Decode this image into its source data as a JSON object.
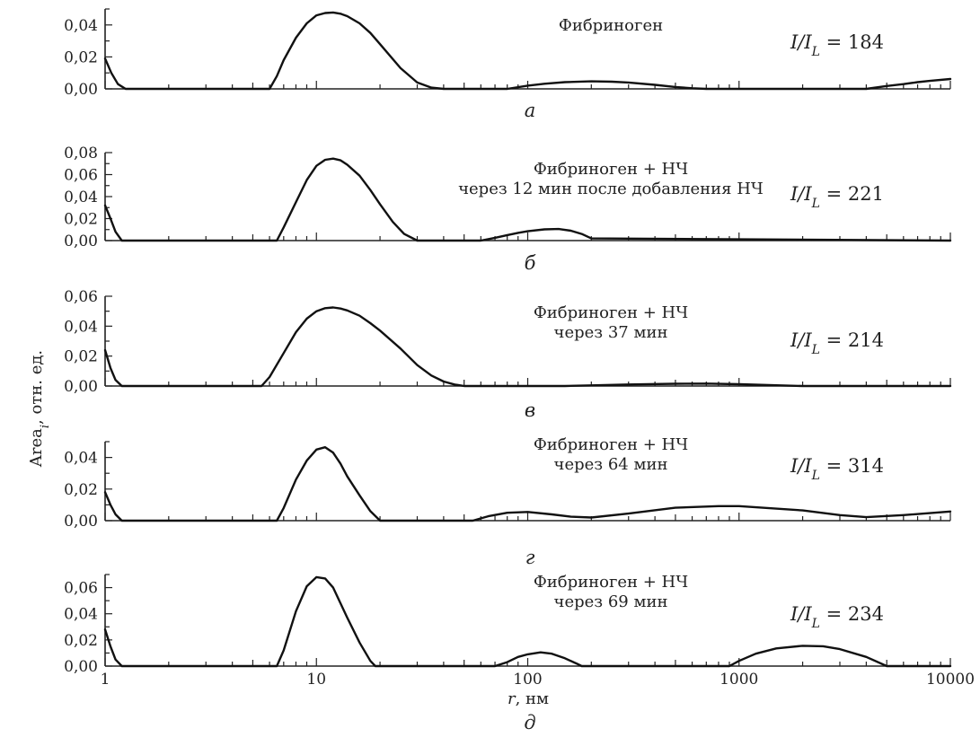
{
  "figure": {
    "ylabel": "Area",
    "ylabel_sub": "i",
    "ylabel_rest": ", отн. ед.",
    "xlabel_var": "r",
    "xlabel_unit": ", нм"
  },
  "chart_data": [
    {
      "type": "line",
      "panel": "а",
      "title_lines": [
        "Фибриноген"
      ],
      "ratio": {
        "text": "I/I",
        "sub": "L",
        "value": " = 184"
      },
      "xscale": "log",
      "xlim": [
        1,
        10000
      ],
      "ylim": [
        0,
        0.05
      ],
      "yticks": [
        "0,00",
        "0,02",
        "0,04"
      ],
      "xticks": [],
      "grid": false,
      "series": [
        {
          "x": [
            1,
            1.07,
            1.15,
            1.25,
            6,
            6.5,
            7,
            8,
            9,
            10,
            11,
            12,
            13,
            14,
            16,
            18,
            20,
            25,
            30,
            35,
            40,
            80,
            100,
            120,
            150,
            200,
            250,
            300,
            400,
            500,
            600,
            700,
            4000,
            5000,
            6000,
            7000,
            8000,
            10000
          ],
          "y": [
            0.019,
            0.01,
            0.003,
            0,
            0,
            0.008,
            0.018,
            0.032,
            0.041,
            0.046,
            0.0475,
            0.0478,
            0.047,
            0.0455,
            0.041,
            0.035,
            0.028,
            0.013,
            0.004,
            0.0008,
            0,
            0,
            0.002,
            0.0032,
            0.0042,
            0.0047,
            0.0045,
            0.004,
            0.0025,
            0.0012,
            0.0004,
            0,
            0,
            0.0018,
            0.003,
            0.0042,
            0.005,
            0.0062
          ]
        }
      ]
    },
    {
      "type": "line",
      "panel": "б",
      "title_lines": [
        "Фибриноген + НЧ",
        "через 12 мин после добавления НЧ"
      ],
      "ratio": {
        "text": "I/I",
        "sub": "L",
        "value": " = 221"
      },
      "xscale": "log",
      "xlim": [
        1,
        10000
      ],
      "ylim": [
        0,
        0.08
      ],
      "yticks": [
        "0,00",
        "0,02",
        "0,04",
        "0,06",
        "0,08"
      ],
      "xticks": [],
      "grid": false,
      "series": [
        {
          "x": [
            1,
            1.06,
            1.12,
            1.2,
            6.5,
            7,
            8,
            9,
            10,
            11,
            12,
            13,
            14,
            16,
            18,
            20,
            23,
            26,
            30,
            60,
            70,
            80,
            90,
            100,
            120,
            140,
            160,
            180,
            200,
            10000
          ],
          "y": [
            0.032,
            0.02,
            0.008,
            0,
            0,
            0.012,
            0.035,
            0.055,
            0.068,
            0.0735,
            0.0745,
            0.073,
            0.069,
            0.059,
            0.046,
            0.033,
            0.017,
            0.006,
            0,
            0,
            0.0025,
            0.005,
            0.007,
            0.0085,
            0.0102,
            0.0105,
            0.009,
            0.006,
            0.002,
            0
          ]
        }
      ]
    },
    {
      "type": "line",
      "panel": "в",
      "title_lines": [
        "Фибриноген + НЧ",
        "через 37 мин"
      ],
      "ratio": {
        "text": "I/I",
        "sub": "L",
        "value": " = 214"
      },
      "xscale": "log",
      "xlim": [
        1,
        10000
      ],
      "ylim": [
        0,
        0.06
      ],
      "yticks": [
        "0,00",
        "0,02",
        "0,04",
        "0,06"
      ],
      "xticks": [],
      "grid": false,
      "series": [
        {
          "x": [
            1,
            1.06,
            1.12,
            1.2,
            5.5,
            6,
            7,
            8,
            9,
            10,
            11,
            12,
            13,
            14,
            16,
            18,
            20,
            25,
            30,
            35,
            40,
            45,
            50,
            150,
            200,
            300,
            500,
            700,
            1000,
            1500,
            2000,
            10000
          ],
          "y": [
            0.024,
            0.012,
            0.004,
            0,
            0,
            0.006,
            0.022,
            0.036,
            0.045,
            0.05,
            0.052,
            0.0525,
            0.0518,
            0.0505,
            0.047,
            0.042,
            0.037,
            0.025,
            0.014,
            0.007,
            0.003,
            0.001,
            0,
            0,
            0.0004,
            0.001,
            0.0015,
            0.0016,
            0.0012,
            0.0005,
            0,
            0
          ]
        }
      ]
    },
    {
      "type": "line",
      "panel": "г",
      "title_lines": [
        "Фибриноген + НЧ",
        "через 64 мин"
      ],
      "ratio": {
        "text": "I/I",
        "sub": "L",
        "value": " = 314"
      },
      "xscale": "log",
      "xlim": [
        1,
        10000
      ],
      "ylim": [
        0,
        0.05
      ],
      "yticks": [
        "0,00",
        "0,02",
        "0,04"
      ],
      "xticks": [],
      "grid": false,
      "series": [
        {
          "x": [
            1,
            1.06,
            1.12,
            1.2,
            6.5,
            7,
            8,
            9,
            10,
            11,
            12,
            13,
            14,
            16,
            18,
            20,
            55,
            65,
            80,
            100,
            130,
            160,
            200,
            300,
            500,
            800,
            1000,
            2000,
            3000,
            4000,
            6000,
            10000
          ],
          "y": [
            0.018,
            0.01,
            0.004,
            0,
            0,
            0.008,
            0.026,
            0.038,
            0.045,
            0.0465,
            0.043,
            0.036,
            0.028,
            0.016,
            0.006,
            0,
            0,
            0.0028,
            0.005,
            0.0055,
            0.004,
            0.0025,
            0.002,
            0.0045,
            0.0082,
            0.0092,
            0.0092,
            0.0065,
            0.0035,
            0.0022,
            0.0035,
            0.0058
          ]
        }
      ]
    },
    {
      "type": "line",
      "panel": "д",
      "title_lines": [
        "Фибриноген + НЧ",
        "через 69 мин"
      ],
      "ratio": {
        "text": "I/I",
        "sub": "L",
        "value": " = 234"
      },
      "xscale": "log",
      "xlim": [
        1,
        10000
      ],
      "ylim": [
        0,
        0.07
      ],
      "yticks": [
        "0,00",
        "0,02",
        "0,04",
        "0,06"
      ],
      "xticks": [
        "1",
        "10",
        "100",
        "1000",
        "10000"
      ],
      "grid": false,
      "series": [
        {
          "x": [
            1,
            1.06,
            1.12,
            1.2,
            6.5,
            7,
            8,
            9,
            10,
            11,
            12,
            13,
            14,
            16,
            18,
            19,
            70,
            80,
            90,
            100,
            115,
            130,
            150,
            170,
            180,
            900,
            1000,
            1200,
            1500,
            2000,
            2500,
            3000,
            4000,
            5000,
            10000
          ],
          "y": [
            0.028,
            0.015,
            0.005,
            0,
            0,
            0.012,
            0.042,
            0.061,
            0.068,
            0.067,
            0.06,
            0.048,
            0.037,
            0.018,
            0.004,
            0,
            0,
            0.003,
            0.007,
            0.009,
            0.0105,
            0.0095,
            0.006,
            0.002,
            0,
            0,
            0.004,
            0.0095,
            0.0135,
            0.0155,
            0.0152,
            0.013,
            0.007,
            0,
            0
          ]
        }
      ]
    }
  ]
}
